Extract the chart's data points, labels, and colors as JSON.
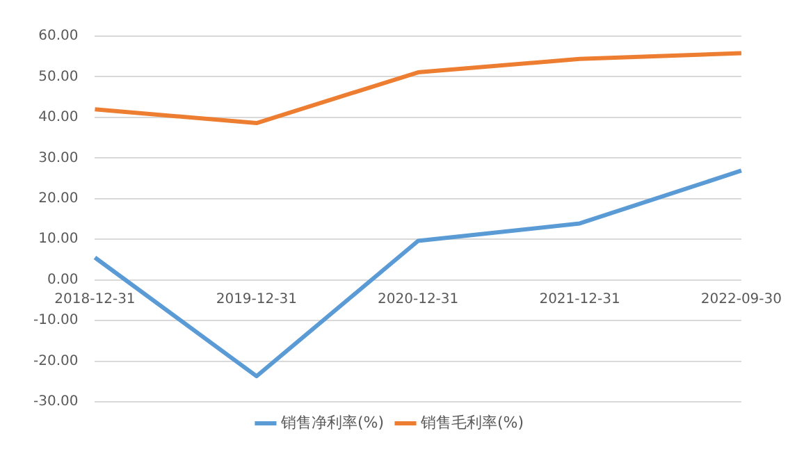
{
  "chart_data": {
    "type": "line",
    "categories": [
      "2018-12-31",
      "2019-12-31",
      "2020-12-31",
      "2021-12-31",
      "2022-09-30"
    ],
    "series": [
      {
        "name": "销售净利率(%)",
        "color": "#5b9bd5",
        "values": [
          5.5,
          -23.7,
          9.6,
          13.9,
          26.9
        ]
      },
      {
        "name": "销售毛利率(%)",
        "color": "#ed7d31",
        "values": [
          42.0,
          38.6,
          51.1,
          54.4,
          55.8
        ]
      }
    ],
    "ylim": [
      -30,
      60
    ],
    "yticks": [
      {
        "value": -30,
        "label": "-30.00"
      },
      {
        "value": -20,
        "label": "-20.00"
      },
      {
        "value": -10,
        "label": "-10.00"
      },
      {
        "value": 0,
        "label": "0.00"
      },
      {
        "value": 10,
        "label": "10.00"
      },
      {
        "value": 20,
        "label": "20.00"
      },
      {
        "value": 30,
        "label": "30.00"
      },
      {
        "value": 40,
        "label": "40.00"
      },
      {
        "value": 50,
        "label": "50.00"
      },
      {
        "value": 60,
        "label": "60.00"
      }
    ],
    "grid": "y",
    "legend": "bottom",
    "marker": "none",
    "line_style": "solid"
  }
}
